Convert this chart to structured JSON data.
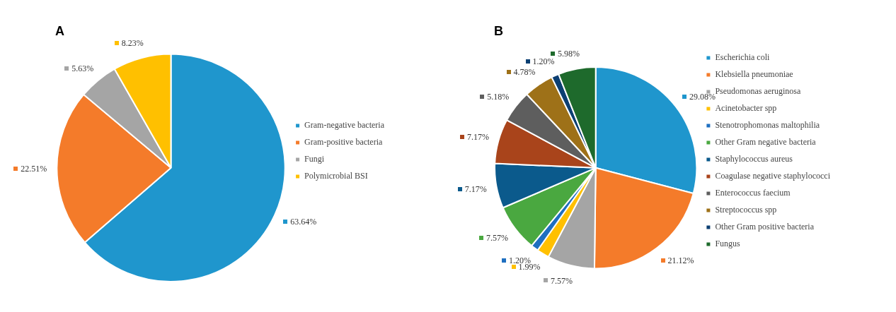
{
  "chart_data": [
    {
      "type": "pie",
      "title": "A",
      "categories": [
        "Gram-negative bacteria",
        "Gram-positive bacteria",
        "Fungi",
        "Polymicrobial BSI"
      ],
      "values": [
        63.64,
        22.51,
        5.63,
        8.23
      ],
      "colors": [
        "#1f96cd",
        "#f47b2a",
        "#a5a5a5",
        "#ffc000"
      ],
      "value_labels": [
        "63.64%",
        "22.51%",
        "5.63%",
        "8.23%"
      ],
      "legend": "right"
    },
    {
      "type": "pie",
      "title": "B",
      "categories": [
        "Escherichia coli",
        "Klebsiella pneumoniae",
        "Pseudomonas aeruginosa",
        "Acinetobacter spp",
        "Stenotrophomonas maltophilia",
        "Other Gram negative bacteria",
        "Staphylococcus aureus",
        "Coagulase negative staphylococci",
        "Enterococcus faecium",
        "Streptococcus spp",
        "Other Gram positive bacteria",
        "Fungus"
      ],
      "values": [
        29.08,
        21.12,
        7.57,
        1.99,
        1.2,
        7.57,
        7.17,
        7.17,
        5.18,
        4.78,
        1.2,
        5.98
      ],
      "colors": [
        "#1f96cd",
        "#f47b2a",
        "#a5a5a5",
        "#ffc000",
        "#1f6fc0",
        "#4aa840",
        "#0b5a8c",
        "#a9441b",
        "#5e5e5e",
        "#9e7118",
        "#0c3f72",
        "#1e6a2c"
      ],
      "value_labels": [
        "29.08%",
        "21.12%",
        "7.57%",
        "1.99%",
        "1.20%",
        "7.57%",
        "7.17%",
        "7.17%",
        "5.18%",
        "4.78%",
        "1.20%",
        "5.98%"
      ],
      "legend": "right"
    }
  ]
}
